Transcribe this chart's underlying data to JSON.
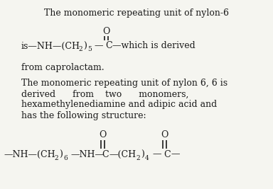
{
  "bg_color": "#f5f5f0",
  "text_color": "#1a1a1a",
  "title": "The monomeric repeating unit of nylon-6",
  "line3": "from caprolactam.",
  "line4": "The monomeric repeating unit of nylon 6, 6 is",
  "line5": "derived      from    two      monomers,",
  "line6": "hexamethylenediamine and adipic acid and",
  "line7": "has the following structure:",
  "fs_main": 9.0,
  "fs_sub": 6.5,
  "fig_w": 3.84,
  "fig_h": 2.67,
  "dpi": 100
}
